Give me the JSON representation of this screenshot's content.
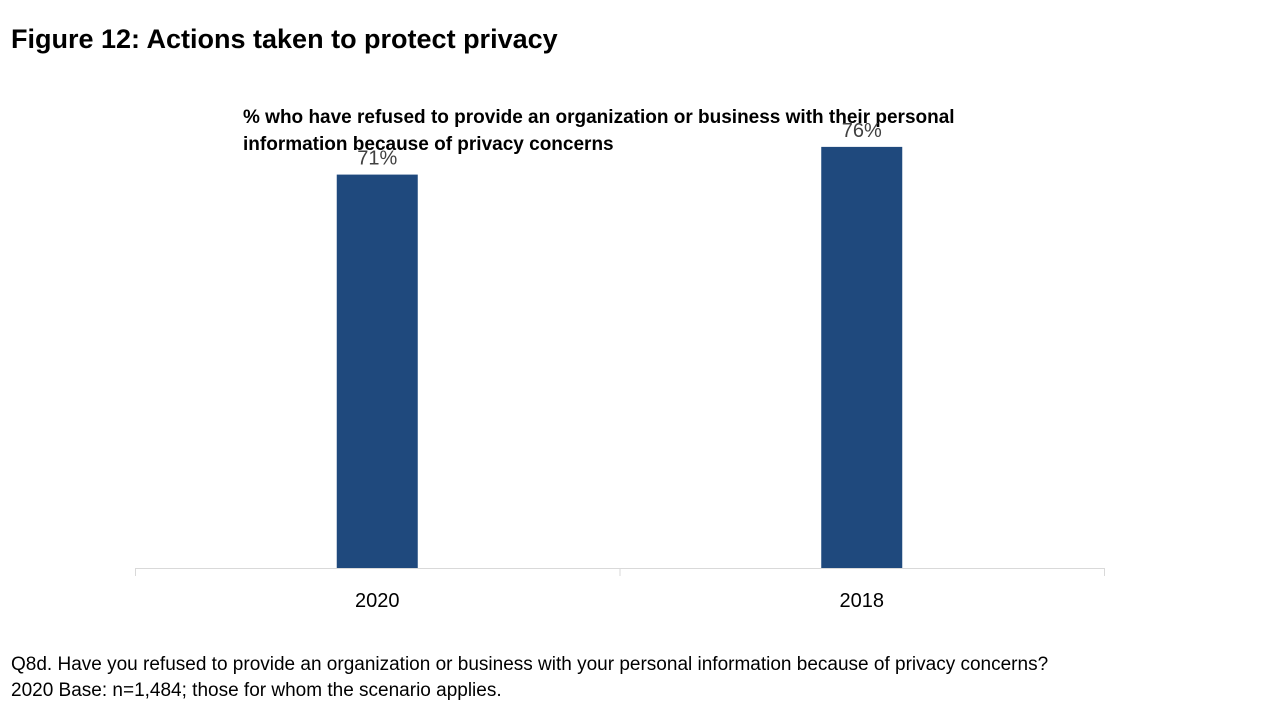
{
  "figure_title": "Figure 12: Actions taken to protect privacy",
  "chart_data": {
    "type": "bar",
    "title": "% who have refused to provide an organization or business with their personal information because of privacy concerns",
    "categories": [
      "2020",
      "2018"
    ],
    "values": [
      71,
      76
    ],
    "value_labels": [
      "71%",
      "76%"
    ],
    "ylim": [
      0,
      80
    ],
    "grid": false,
    "bar_color": "#1F497D",
    "axis_color": "#D9D9D9"
  },
  "footnote": {
    "line1": "Q8d. Have you refused to provide an organization or business with your personal information because of privacy concerns?",
    "line2": "2020 Base: n=1,484; those for whom the scenario applies."
  }
}
